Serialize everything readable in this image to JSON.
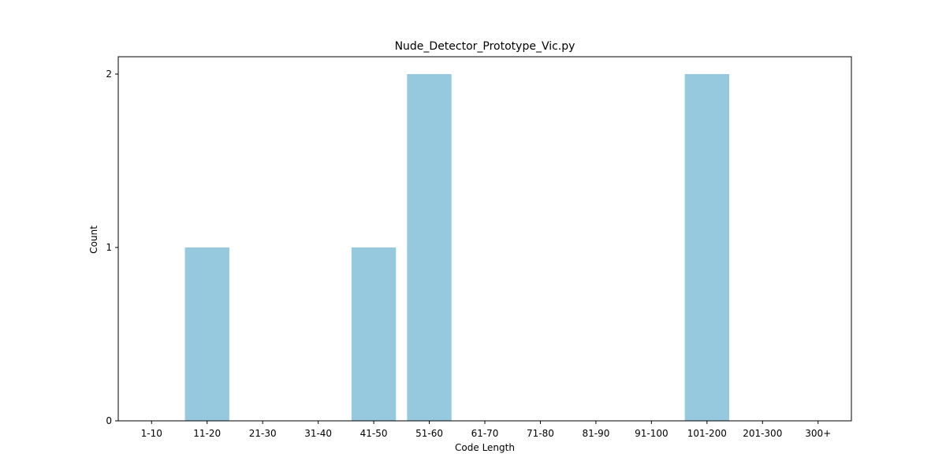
{
  "chart_data": {
    "type": "bar",
    "title": "Nude_Detector_Prototype_Vic.py",
    "xlabel": "Code Length",
    "ylabel": "Count",
    "categories": [
      "1-10",
      "11-20",
      "21-30",
      "31-40",
      "41-50",
      "51-60",
      "61-70",
      "71-80",
      "81-90",
      "91-100",
      "101-200",
      "201-300",
      "300+"
    ],
    "values": [
      0,
      1,
      0,
      0,
      1,
      2,
      0,
      0,
      0,
      0,
      2,
      0,
      0
    ],
    "ylim": [
      0,
      2.1
    ],
    "yticks": [
      0,
      1,
      2
    ],
    "grid": false,
    "bar_color": "#96c9dd"
  }
}
